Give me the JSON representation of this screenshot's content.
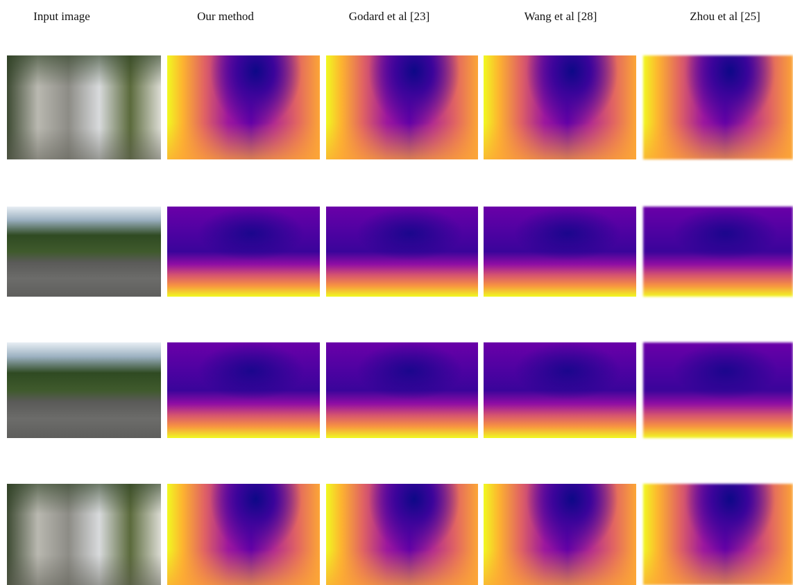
{
  "columns": [
    "Input image",
    "Our method",
    "Godard et al [23]",
    "Wang et al [28]",
    "Zhou et al [25]"
  ]
}
